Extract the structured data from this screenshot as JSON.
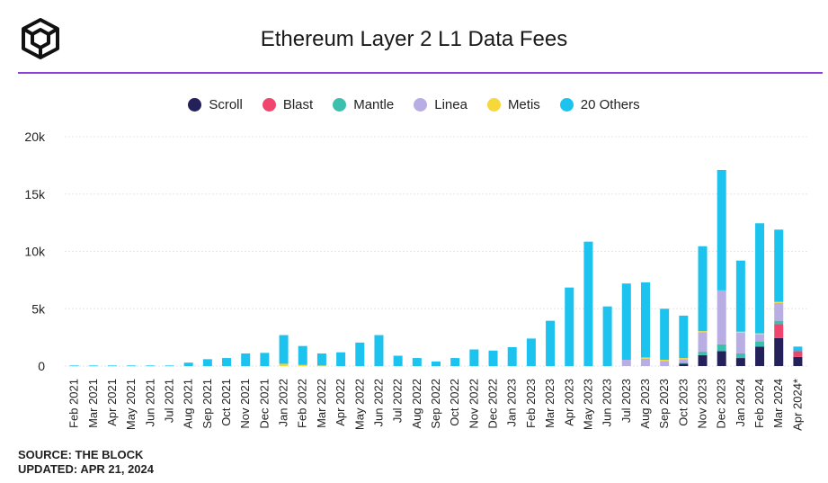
{
  "header": {
    "title": "Ethereum Layer 2 L1 Data Fees"
  },
  "footer": {
    "source": "SOURCE: THE BLOCK",
    "updated": "UPDATED: APR 21, 2024"
  },
  "colors": {
    "accent_rule": "#8b3fd9",
    "grid": "#e6e6e6"
  },
  "chart_data": {
    "type": "bar",
    "stacked": true,
    "title": "Ethereum Layer 2 L1 Data Fees",
    "xlabel": "",
    "ylabel": "",
    "ylim": [
      0,
      20000
    ],
    "yticks": [
      0,
      5000,
      10000,
      15000,
      20000
    ],
    "ytick_labels": [
      "0",
      "5k",
      "10k",
      "15k",
      "20k"
    ],
    "grid": true,
    "legend_position": "top-center",
    "categories": [
      "Feb 2021",
      "Mar 2021",
      "Apr 2021",
      "May 2021",
      "Jun 2021",
      "Jul 2021",
      "Aug 2021",
      "Sep 2021",
      "Oct 2021",
      "Nov 2021",
      "Dec 2021",
      "Jan 2022",
      "Feb 2022",
      "Mar 2022",
      "Apr 2022",
      "May 2022",
      "Jun 2022",
      "Jul 2022",
      "Aug 2022",
      "Sep 2022",
      "Oct 2022",
      "Nov 2022",
      "Dec 2022",
      "Jan 2023",
      "Feb 2023",
      "Mar 2023",
      "Apr 2023",
      "May 2023",
      "Jun 2023",
      "Jul 2023",
      "Aug 2023",
      "Sep 2023",
      "Oct 2023",
      "Nov 2023",
      "Dec 2023",
      "Jan 2024",
      "Feb 2024",
      "Mar 2024",
      "Apr 2024*"
    ],
    "series": [
      {
        "name": "Scroll",
        "color": "#23205a",
        "values": [
          0,
          0,
          0,
          0,
          0,
          0,
          0,
          0,
          0,
          0,
          0,
          0,
          0,
          0,
          0,
          0,
          0,
          0,
          0,
          0,
          0,
          0,
          0,
          0,
          0,
          0,
          0,
          0,
          0,
          0,
          0,
          0,
          200,
          950,
          1300,
          700,
          1700,
          2450,
          800
        ]
      },
      {
        "name": "Blast",
        "color": "#f0466e",
        "values": [
          0,
          0,
          0,
          0,
          0,
          0,
          0,
          0,
          0,
          0,
          0,
          0,
          0,
          0,
          0,
          0,
          0,
          0,
          0,
          0,
          0,
          0,
          0,
          0,
          0,
          0,
          0,
          0,
          0,
          0,
          0,
          0,
          0,
          0,
          0,
          0,
          0,
          1200,
          500
        ]
      },
      {
        "name": "Mantle",
        "color": "#3cbfad",
        "values": [
          0,
          0,
          0,
          0,
          0,
          0,
          0,
          0,
          0,
          0,
          0,
          0,
          0,
          0,
          0,
          0,
          0,
          0,
          0,
          0,
          0,
          0,
          0,
          0,
          0,
          0,
          0,
          0,
          0,
          0,
          0,
          0,
          100,
          300,
          600,
          400,
          450,
          300,
          0
        ]
      },
      {
        "name": "Linea",
        "color": "#b9aee3",
        "values": [
          0,
          0,
          0,
          0,
          0,
          0,
          0,
          0,
          0,
          0,
          0,
          0,
          0,
          0,
          0,
          0,
          0,
          0,
          0,
          0,
          0,
          0,
          0,
          0,
          0,
          0,
          0,
          0,
          0,
          550,
          650,
          450,
          300,
          1700,
          4700,
          1800,
          600,
          1550,
          0
        ]
      },
      {
        "name": "Metis",
        "color": "#f7d83a",
        "values": [
          0,
          0,
          0,
          0,
          0,
          0,
          0,
          0,
          0,
          0,
          0,
          200,
          100,
          50,
          0,
          0,
          0,
          0,
          0,
          0,
          0,
          0,
          0,
          0,
          0,
          0,
          0,
          0,
          0,
          0,
          100,
          100,
          100,
          100,
          0,
          100,
          100,
          100,
          0
        ]
      },
      {
        "name": "20 Others",
        "color": "#1cc3ee",
        "values": [
          50,
          50,
          50,
          50,
          50,
          50,
          300,
          600,
          700,
          1100,
          1150,
          2500,
          1650,
          1050,
          1200,
          2050,
          2700,
          900,
          700,
          400,
          700,
          1450,
          1350,
          1650,
          2400,
          3950,
          6850,
          10850,
          5200,
          6650,
          6550,
          4450,
          3700,
          7400,
          10500,
          6200,
          9600,
          6300,
          400
        ]
      }
    ]
  }
}
